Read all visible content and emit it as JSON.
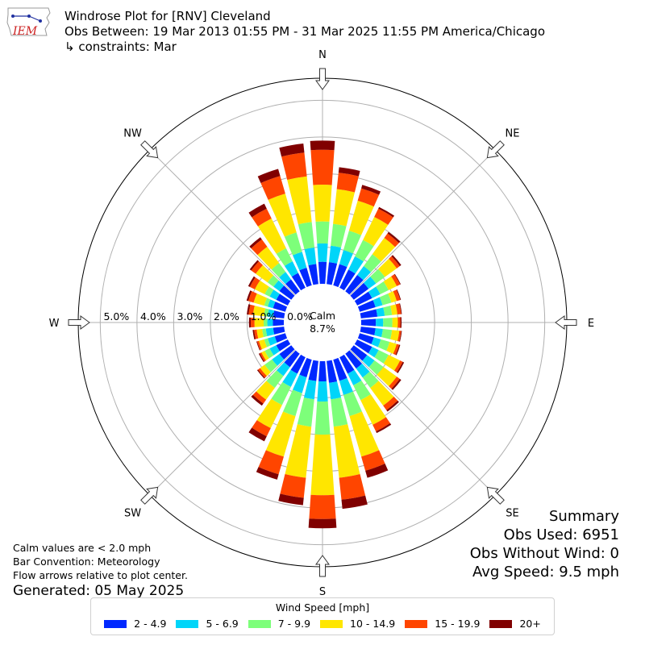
{
  "header": {
    "logo_text": "IEM",
    "title": "Windrose Plot for [RNV] Cleveland",
    "obs_between": "Obs Between: 19 Mar 2013 01:55 PM - 31 Mar 2025 11:55 PM America/Chicago",
    "constraints": "↳ constraints: Mar"
  },
  "notes": {
    "calm": "Calm values are < 2.0 mph",
    "convention": "Bar Convention: Meteorology",
    "flow": "Flow arrows relative to plot center.",
    "generated": "Generated: 05 May 2025"
  },
  "summary": {
    "title": "Summary",
    "obs_used": "Obs Used: 6951",
    "obs_without_wind": "Obs Without Wind: 0",
    "avg_speed": "Avg Speed: 9.5 mph"
  },
  "legend": {
    "title": "Wind Speed [mph]",
    "items": [
      {
        "label": "2 - 4.9",
        "color": "#0028ff"
      },
      {
        "label": "5 - 6.9",
        "color": "#00d5f9"
      },
      {
        "label": "7 - 9.9",
        "color": "#7dff7a"
      },
      {
        "label": "10 - 14.9",
        "color": "#ffe600"
      },
      {
        "label": "15 - 19.9",
        "color": "#ff4500"
      },
      {
        "label": "20+",
        "color": "#800000"
      }
    ]
  },
  "chart_data": {
    "type": "windrose",
    "calm_label": "Calm",
    "calm_percent": "8.7%",
    "radial_unit": "percent",
    "radial_range": [
      0,
      5.6
    ],
    "radial_ticks": [
      0,
      1,
      2,
      3,
      4,
      5
    ],
    "radial_tick_labels": [
      "0.0%",
      "1.0%",
      "2.0%",
      "3.0%",
      "4.0%",
      "5.0%"
    ],
    "grid": true,
    "direction_labels": [
      "N",
      "NE",
      "E",
      "SE",
      "S",
      "SW",
      "W",
      "NW"
    ],
    "bin_width_deg": 10,
    "bins": [
      "2 - 4.9",
      "5 - 6.9",
      "7 - 9.9",
      "10 - 14.9",
      "15 - 19.9",
      "20+"
    ],
    "directions": [
      0,
      10,
      20,
      30,
      40,
      50,
      60,
      70,
      80,
      90,
      100,
      110,
      120,
      130,
      140,
      150,
      160,
      170,
      180,
      190,
      200,
      210,
      220,
      230,
      240,
      250,
      260,
      270,
      280,
      290,
      300,
      310,
      320,
      330,
      340,
      350
    ],
    "cumulative": [
      [
        0.6,
        1.1,
        1.7,
        2.7,
        3.65,
        3.9
      ],
      [
        0.6,
        1.05,
        1.65,
        2.6,
        3.05,
        3.2
      ],
      [
        0.6,
        1.0,
        1.55,
        2.4,
        2.75,
        2.85
      ],
      [
        0.55,
        0.95,
        1.45,
        2.15,
        2.4,
        2.45
      ],
      [
        0.55,
        0.85,
        1.25,
        1.8,
        1.95,
        2.0
      ],
      [
        0.5,
        0.75,
        1.05,
        1.45,
        1.55,
        1.6
      ],
      [
        0.45,
        0.7,
        0.95,
        1.2,
        1.3,
        1.32
      ],
      [
        0.45,
        0.65,
        0.9,
        1.05,
        1.15,
        1.17
      ],
      [
        0.45,
        0.65,
        0.85,
        1.0,
        1.1,
        1.12
      ],
      [
        0.4,
        0.6,
        0.85,
        1.0,
        1.07,
        1.1
      ],
      [
        0.4,
        0.6,
        0.85,
        1.05,
        1.1,
        1.12
      ],
      [
        0.4,
        0.6,
        0.85,
        1.05,
        1.12,
        1.15
      ],
      [
        0.45,
        0.65,
        0.95,
        1.3,
        1.38,
        1.42
      ],
      [
        0.45,
        0.7,
        1.0,
        1.45,
        1.55,
        1.6
      ],
      [
        0.5,
        0.8,
        1.15,
        1.75,
        1.9,
        1.95
      ],
      [
        0.5,
        0.85,
        1.3,
        2.05,
        2.25,
        2.3
      ],
      [
        0.6,
        1.0,
        1.6,
        2.75,
        3.15,
        3.35
      ],
      [
        0.6,
        1.05,
        1.8,
        3.2,
        3.8,
        4.05
      ],
      [
        0.55,
        1.1,
        2.0,
        3.65,
        4.3,
        4.55
      ],
      [
        0.55,
        1.05,
        1.8,
        3.2,
        3.75,
        3.95
      ],
      [
        0.5,
        0.95,
        1.6,
        2.75,
        3.25,
        3.4
      ],
      [
        0.5,
        0.9,
        1.45,
        2.15,
        2.4,
        2.55
      ],
      [
        0.45,
        0.75,
        1.15,
        1.55,
        1.68,
        1.75
      ],
      [
        0.4,
        0.65,
        0.9,
        1.05,
        1.12,
        1.15
      ],
      [
        0.35,
        0.55,
        0.7,
        0.8,
        0.85,
        0.88
      ],
      [
        0.3,
        0.5,
        0.6,
        0.75,
        0.8,
        0.82
      ],
      [
        0.3,
        0.5,
        0.6,
        0.75,
        0.82,
        0.86
      ],
      [
        0.3,
        0.45,
        0.55,
        0.8,
        0.9,
        0.95
      ],
      [
        0.3,
        0.45,
        0.55,
        0.85,
        0.97,
        1.02
      ],
      [
        0.35,
        0.5,
        0.6,
        0.9,
        1.05,
        1.1
      ],
      [
        0.35,
        0.55,
        0.7,
        1.0,
        1.15,
        1.2
      ],
      [
        0.4,
        0.6,
        0.8,
        1.2,
        1.35,
        1.4
      ],
      [
        0.4,
        0.65,
        0.95,
        1.5,
        1.75,
        1.82
      ],
      [
        0.45,
        0.8,
        1.2,
        2.1,
        2.4,
        2.55
      ],
      [
        0.5,
        0.95,
        1.5,
        2.6,
        3.1,
        3.3
      ],
      [
        0.55,
        1.0,
        1.7,
        2.95,
        3.6,
        3.85
      ]
    ]
  }
}
